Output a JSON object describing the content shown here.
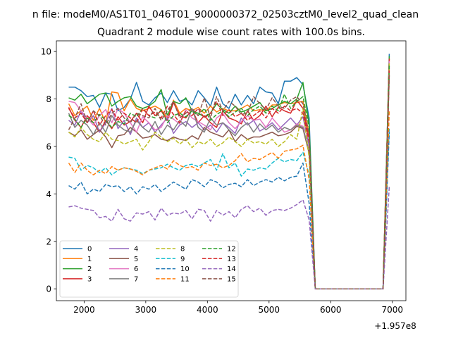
{
  "chart_data": {
    "type": "line",
    "suptitle": "n file: modeM0/AS1T01_046T01_9000000372_02503cztM0_level2_quad_clean",
    "title": "Quadrant 2 module wise count rates with 100.0s bins.",
    "xlabel": "",
    "ylabel": "",
    "x_offset_label": "+1.957e8",
    "xlim": [
      1550,
      7220
    ],
    "ylim": [
      -0.5,
      10.45
    ],
    "xticks": [
      2000,
      3000,
      4000,
      5000,
      6000,
      7000
    ],
    "yticks": [
      0,
      2,
      4,
      6,
      8,
      10
    ],
    "grid": false,
    "legend_position": "lower-left",
    "legend_columns": 4,
    "x": [
      1750,
      1850,
      1950,
      2050,
      2150,
      2250,
      2350,
      2450,
      2550,
      2650,
      2750,
      2850,
      2950,
      3050,
      3150,
      3250,
      3350,
      3450,
      3550,
      3650,
      3750,
      3850,
      3950,
      4050,
      4150,
      4250,
      4350,
      4450,
      4550,
      4650,
      4750,
      4850,
      4950,
      5050,
      5150,
      5250,
      5350,
      5450,
      5550,
      5650,
      5750,
      5850,
      5950,
      6050,
      6150,
      6250,
      6350,
      6450,
      6550,
      6650,
      6750,
      6850,
      6950
    ],
    "series": [
      {
        "name": "0",
        "color": "#1f77b4",
        "dash": "solid",
        "values": [
          8.5,
          8.5,
          8.35,
          8.1,
          8.15,
          7.65,
          8.25,
          8.2,
          7.5,
          7.65,
          8.0,
          8.7,
          7.9,
          7.75,
          8.05,
          8.25,
          7.85,
          8.35,
          7.9,
          8.0,
          7.75,
          8.35,
          8.05,
          7.7,
          8.5,
          7.8,
          7.6,
          8.2,
          7.75,
          8.15,
          7.8,
          8.5,
          8.3,
          8.25,
          7.8,
          8.75,
          8.75,
          8.9,
          8.6,
          7.2,
          0,
          0,
          0,
          0,
          0,
          0,
          0,
          0,
          0,
          0,
          0,
          0,
          9.9
        ]
      },
      {
        "name": "1",
        "color": "#ff7f0e",
        "dash": "solid",
        "values": [
          7.8,
          7.3,
          7.5,
          7.7,
          7.1,
          7.6,
          7.0,
          8.3,
          8.25,
          7.5,
          8.0,
          7.6,
          7.5,
          7.6,
          7.7,
          7.55,
          7.2,
          7.95,
          7.4,
          7.6,
          7.5,
          7.65,
          7.4,
          7.7,
          7.45,
          7.6,
          7.5,
          7.5,
          7.6,
          7.75,
          7.5,
          7.55,
          7.5,
          7.75,
          7.75,
          7.85,
          7.8,
          7.85,
          7.9,
          6.5,
          0,
          0,
          0,
          0,
          0,
          0,
          0,
          0,
          0,
          0,
          0,
          0,
          9.7
        ]
      },
      {
        "name": "2",
        "color": "#2ca02c",
        "dash": "solid",
        "values": [
          8.05,
          7.95,
          8.2,
          7.8,
          8.0,
          8.2,
          8.25,
          7.7,
          7.9,
          8.05,
          8.1,
          7.7,
          7.6,
          7.7,
          7.9,
          8.4,
          7.3,
          7.9,
          7.8,
          8.05,
          7.5,
          7.4,
          7.25,
          7.4,
          7.8,
          7.55,
          7.4,
          7.7,
          7.45,
          7.55,
          7.7,
          7.85,
          7.5,
          7.6,
          7.75,
          7.9,
          7.8,
          8.0,
          8.7,
          6.9,
          0,
          0,
          0,
          0,
          0,
          0,
          0,
          0,
          0,
          0,
          0,
          0,
          9.8
        ]
      },
      {
        "name": "3",
        "color": "#d62728",
        "dash": "solid",
        "values": [
          7.65,
          7.1,
          6.8,
          7.3,
          7.0,
          6.6,
          7.1,
          6.75,
          7.25,
          6.9,
          7.05,
          7.4,
          7.0,
          7.7,
          7.3,
          7.5,
          7.1,
          7.85,
          7.3,
          7.2,
          7.55,
          7.0,
          7.3,
          7.0,
          6.8,
          7.5,
          7.2,
          7.1,
          6.95,
          7.5,
          7.1,
          7.3,
          7.7,
          7.25,
          7.65,
          7.5,
          7.4,
          7.95,
          7.6,
          6.3,
          0,
          0,
          0,
          0,
          0,
          0,
          0,
          0,
          0,
          0,
          0,
          0,
          9.7
        ]
      },
      {
        "name": "4",
        "color": "#9467bd",
        "dash": "solid",
        "values": [
          7.1,
          6.9,
          7.5,
          7.0,
          7.3,
          6.6,
          7.0,
          7.6,
          6.75,
          7.1,
          6.5,
          7.2,
          6.8,
          7.0,
          6.6,
          6.9,
          7.2,
          6.55,
          6.9,
          7.05,
          6.8,
          7.0,
          6.7,
          6.9,
          6.6,
          7.0,
          6.8,
          6.55,
          7.2,
          6.9,
          7.1,
          6.65,
          6.8,
          7.0,
          6.7,
          6.95,
          7.2,
          6.9,
          7.25,
          6.0,
          0,
          0,
          0,
          0,
          0,
          0,
          0,
          0,
          0,
          0,
          0,
          0,
          9.4
        ]
      },
      {
        "name": "5",
        "color": "#8c564b",
        "dash": "solid",
        "values": [
          6.6,
          6.45,
          6.7,
          6.3,
          6.5,
          6.7,
          6.4,
          5.95,
          6.45,
          6.5,
          6.8,
          6.6,
          6.35,
          6.4,
          6.5,
          6.3,
          6.25,
          6.4,
          6.3,
          6.25,
          6.45,
          6.3,
          6.8,
          6.6,
          6.5,
          6.4,
          6.7,
          6.2,
          6.5,
          6.3,
          6.4,
          6.4,
          6.5,
          6.6,
          6.45,
          6.5,
          6.6,
          6.85,
          6.75,
          5.7,
          0,
          0,
          0,
          0,
          0,
          0,
          0,
          0,
          0,
          0,
          0,
          0,
          9.0
        ]
      },
      {
        "name": "6",
        "color": "#e377c2",
        "dash": "solid",
        "values": [
          7.9,
          7.85,
          7.5,
          7.2,
          6.9,
          7.3,
          7.55,
          7.0,
          7.6,
          7.4,
          7.0,
          6.6,
          7.25,
          7.0,
          6.7,
          6.8,
          7.3,
          7.15,
          6.95,
          7.55,
          7.2,
          7.05,
          6.9,
          6.7,
          7.2,
          7.4,
          7.0,
          6.75,
          7.05,
          7.3,
          7.1,
          7.15,
          6.8,
          7.2,
          6.9,
          6.6,
          6.7,
          6.95,
          6.85,
          6.3,
          0,
          0,
          0,
          0,
          0,
          0,
          0,
          0,
          0,
          0,
          0,
          0,
          9.6
        ]
      },
      {
        "name": "7",
        "color": "#7f7f7f",
        "dash": "solid",
        "values": [
          7.4,
          6.8,
          7.1,
          6.9,
          6.5,
          7.0,
          6.6,
          7.3,
          6.9,
          6.7,
          6.6,
          7.1,
          6.8,
          6.6,
          7.05,
          6.5,
          6.9,
          6.7,
          7.1,
          6.85,
          7.6,
          6.8,
          6.6,
          7.2,
          6.9,
          7.0,
          6.7,
          6.45,
          6.8,
          7.0,
          6.6,
          6.95,
          6.7,
          6.9,
          6.6,
          6.8,
          6.7,
          6.9,
          6.8,
          5.8,
          0,
          0,
          0,
          0,
          0,
          0,
          0,
          0,
          0,
          0,
          0,
          0,
          9.3
        ]
      },
      {
        "name": "8",
        "color": "#bcbd22",
        "dash": "dashed",
        "values": [
          6.6,
          6.4,
          6.8,
          6.5,
          6.3,
          6.2,
          6.6,
          6.3,
          6.25,
          6.1,
          6.2,
          6.3,
          5.85,
          6.2,
          6.6,
          6.4,
          6.2,
          6.35,
          6.1,
          6.3,
          5.95,
          6.2,
          6.1,
          6.3,
          6.0,
          6.15,
          6.4,
          6.2,
          6.0,
          6.3,
          6.15,
          6.2,
          6.1,
          6.3,
          6.0,
          6.2,
          6.5,
          6.3,
          7.6,
          5.5,
          0,
          0,
          0,
          0,
          0,
          0,
          0,
          0,
          0,
          0,
          0,
          0,
          9.5
        ]
      },
      {
        "name": "9",
        "color": "#17becf",
        "dash": "dashed",
        "values": [
          5.55,
          5.5,
          5.0,
          5.2,
          5.1,
          4.9,
          5.1,
          4.8,
          5.0,
          5.1,
          5.05,
          5.0,
          4.85,
          5.0,
          5.05,
          5.1,
          5.25,
          5.1,
          5.0,
          5.2,
          5.25,
          5.15,
          5.3,
          5.45,
          5.0,
          5.7,
          5.1,
          5.3,
          4.75,
          5.05,
          5.0,
          5.1,
          5.05,
          5.3,
          5.5,
          5.35,
          5.45,
          5.4,
          5.75,
          4.8,
          0,
          0,
          0,
          0,
          0,
          0,
          0,
          0,
          0,
          0,
          0,
          0,
          6.8
        ]
      },
      {
        "name": "10",
        "color": "#1f77b4",
        "dash": "dashed",
        "values": [
          4.35,
          4.2,
          4.5,
          4.0,
          4.2,
          4.1,
          4.4,
          4.3,
          4.35,
          4.1,
          4.3,
          4.0,
          4.3,
          4.2,
          4.4,
          4.1,
          4.3,
          4.5,
          4.35,
          4.2,
          4.6,
          4.5,
          4.3,
          4.6,
          4.5,
          4.25,
          4.4,
          4.45,
          4.3,
          4.6,
          4.35,
          4.5,
          4.6,
          4.5,
          4.7,
          4.55,
          4.7,
          4.75,
          5.3,
          3.6,
          0,
          0,
          0,
          0,
          0,
          0,
          0,
          0,
          0,
          0,
          0,
          0,
          6.6
        ]
      },
      {
        "name": "11",
        "color": "#ff7f0e",
        "dash": "dashed",
        "values": [
          5.3,
          4.9,
          5.3,
          5.0,
          4.8,
          5.0,
          4.85,
          5.15,
          5.0,
          5.1,
          5.05,
          4.95,
          4.8,
          5.0,
          5.1,
          5.2,
          5.05,
          5.4,
          5.2,
          5.1,
          5.15,
          5.0,
          5.3,
          5.2,
          5.25,
          5.1,
          5.2,
          5.4,
          5.7,
          5.35,
          5.5,
          5.45,
          5.6,
          5.75,
          5.5,
          5.8,
          5.85,
          5.9,
          6.05,
          4.6,
          0,
          0,
          0,
          0,
          0,
          0,
          0,
          0,
          0,
          0,
          0,
          0,
          7.5
        ]
      },
      {
        "name": "12",
        "color": "#2ca02c",
        "dash": "dashed",
        "values": [
          7.3,
          7.15,
          6.8,
          7.2,
          7.0,
          7.35,
          7.1,
          6.8,
          7.05,
          6.95,
          7.4,
          7.25,
          7.6,
          7.3,
          7.2,
          7.55,
          7.0,
          7.3,
          7.4,
          7.25,
          7.5,
          7.3,
          7.6,
          7.1,
          7.35,
          7.5,
          7.25,
          7.45,
          7.6,
          7.3,
          7.55,
          7.7,
          7.4,
          7.7,
          7.5,
          8.2,
          7.6,
          7.9,
          8.1,
          6.8,
          0,
          0,
          0,
          0,
          0,
          0,
          0,
          0,
          0,
          0,
          0,
          0,
          9.4
        ]
      },
      {
        "name": "13",
        "color": "#d62728",
        "dash": "dashed",
        "values": [
          7.6,
          7.2,
          7.4,
          7.0,
          7.5,
          6.9,
          7.3,
          7.55,
          7.1,
          7.4,
          7.2,
          7.0,
          7.6,
          7.3,
          7.45,
          7.2,
          7.7,
          7.35,
          7.0,
          7.5,
          7.3,
          7.6,
          7.2,
          7.4,
          7.9,
          7.3,
          7.55,
          7.25,
          7.4,
          7.1,
          7.3,
          7.5,
          7.2,
          7.6,
          7.4,
          7.7,
          7.5,
          7.6,
          7.4,
          6.2,
          0,
          0,
          0,
          0,
          0,
          0,
          0,
          0,
          0,
          0,
          0,
          0,
          9.2
        ]
      },
      {
        "name": "14",
        "color": "#9467bd",
        "dash": "dashed",
        "values": [
          3.45,
          3.5,
          3.4,
          3.35,
          3.3,
          3.0,
          3.05,
          2.85,
          3.35,
          2.95,
          2.85,
          3.2,
          3.15,
          3.25,
          2.9,
          3.4,
          3.1,
          3.2,
          3.15,
          3.3,
          2.95,
          3.35,
          3.3,
          2.85,
          3.3,
          3.1,
          3.25,
          3.0,
          3.35,
          3.5,
          3.25,
          3.4,
          3.1,
          3.3,
          3.35,
          3.3,
          3.4,
          3.55,
          3.75,
          2.9,
          0,
          0,
          0,
          0,
          0,
          0,
          0,
          0,
          0,
          0,
          0,
          0,
          4.3
        ]
      },
      {
        "name": "15",
        "color": "#8c564b",
        "dash": "dashed",
        "values": [
          6.7,
          7.2,
          7.8,
          7.0,
          7.5,
          7.3,
          6.9,
          7.4,
          7.6,
          7.2,
          7.0,
          7.4,
          7.3,
          7.2,
          7.6,
          7.1,
          7.5,
          7.9,
          7.2,
          7.4,
          7.6,
          7.3,
          8.05,
          7.2,
          8.1,
          7.5,
          7.9,
          7.7,
          7.35,
          7.4,
          8.1,
          7.8,
          7.55,
          8.05,
          7.7,
          7.6,
          7.95,
          8.1,
          7.8,
          6.5,
          0,
          0,
          0,
          0,
          0,
          0,
          0,
          0,
          0,
          0,
          0,
          0,
          9.0
        ]
      }
    ]
  }
}
